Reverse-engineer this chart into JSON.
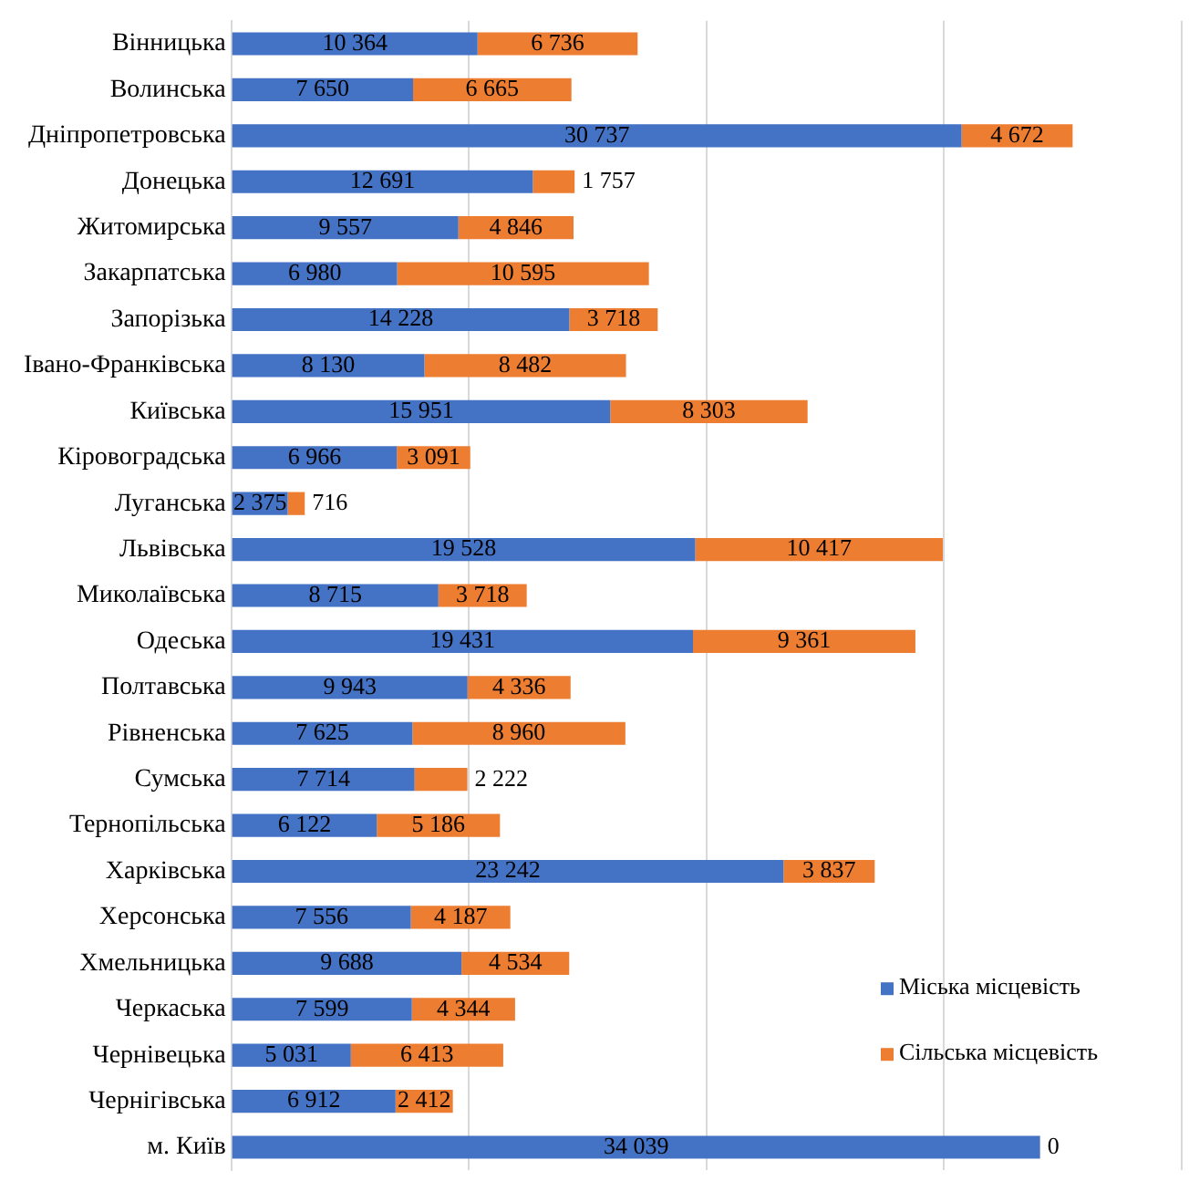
{
  "chart_data": {
    "type": "bar",
    "orientation": "horizontal",
    "stacked": true,
    "categories": [
      "Вінницька",
      "Волинська",
      "Дніпропетровська",
      "Донецька",
      "Житомирська",
      "Закарпатська",
      "Запорізька",
      "Івано-Франківська",
      "Київська",
      "Кіровоградська",
      "Луганська",
      "Львівська",
      "Миколаївська",
      "Одеська",
      "Полтавська",
      "Рівненська",
      "Сумська",
      "Тернопільська",
      "Харківська",
      "Херсонська",
      "Хмельницька",
      "Черкаська",
      "Чернівецька",
      "Чернігівська",
      "м. Київ"
    ],
    "series": [
      {
        "name": "Міська місцевість",
        "color": "#4472c4",
        "values": [
          10364,
          7650,
          30737,
          12691,
          9557,
          6980,
          14228,
          8130,
          15951,
          6966,
          2375,
          19528,
          8715,
          19431,
          9943,
          7625,
          7714,
          6122,
          23242,
          7556,
          9688,
          7599,
          5031,
          6912,
          34039
        ]
      },
      {
        "name": "Сільська місцевість",
        "color": "#ed7d31",
        "values": [
          6736,
          6665,
          4672,
          1757,
          4846,
          10595,
          3718,
          8482,
          8303,
          3091,
          716,
          10417,
          3718,
          9361,
          4336,
          8960,
          2222,
          5186,
          3837,
          4187,
          4534,
          4344,
          6413,
          2412,
          0
        ]
      }
    ],
    "xlim": [
      0,
      40000
    ],
    "xticks": [
      {
        "value": 0,
        "label": null
      },
      {
        "value": 10000,
        "label": null
      },
      {
        "value": 20000,
        "label": null
      },
      {
        "value": 30000,
        "label": null
      },
      {
        "value": 40000,
        "label": null
      }
    ],
    "tick_labels": "y",
    "grid": "x",
    "legend": "bottom right",
    "data_labels": true
  }
}
